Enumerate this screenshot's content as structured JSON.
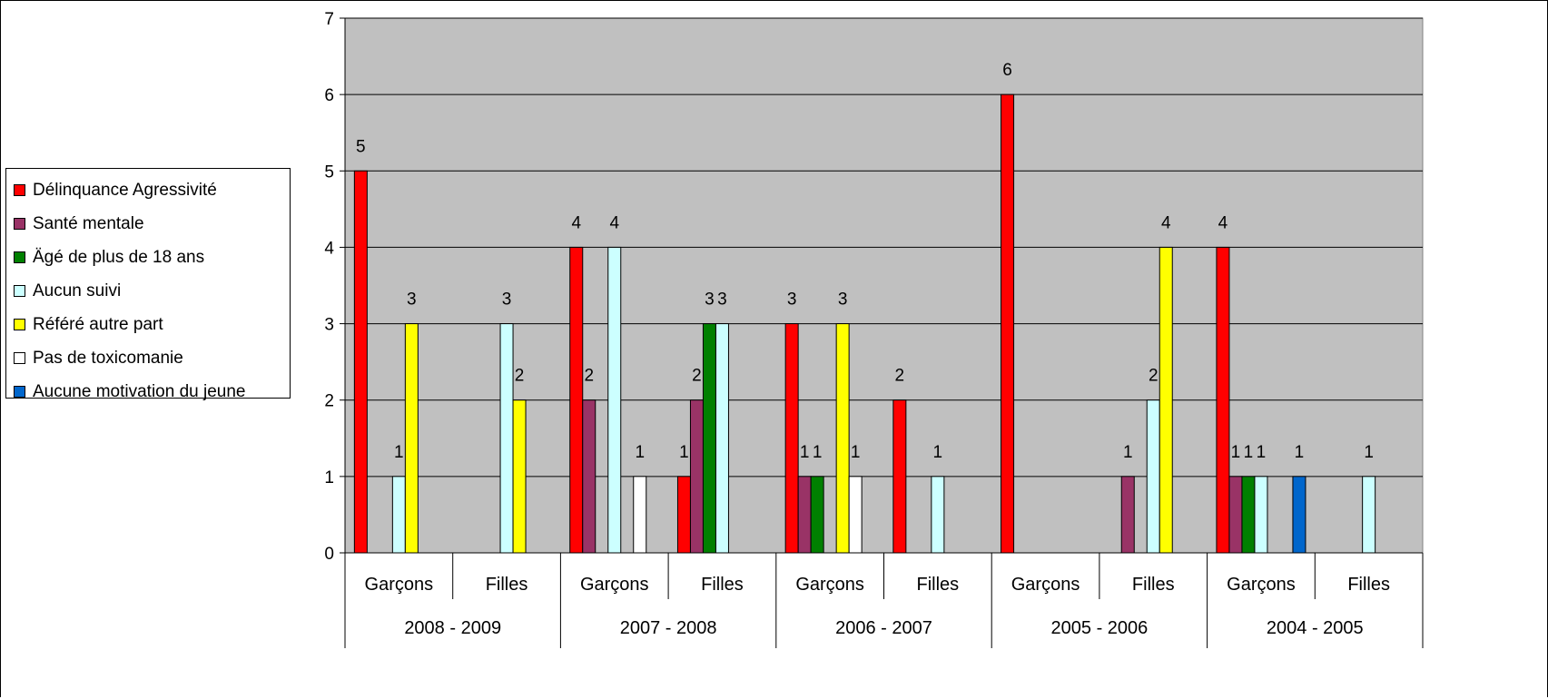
{
  "chart_data": {
    "type": "bar",
    "title": "",
    "xlabel": "",
    "ylabel": "",
    "ylim": [
      0,
      7
    ],
    "yticks": [
      0,
      1,
      2,
      3,
      4,
      5,
      6,
      7
    ],
    "grid": true,
    "legend_position": "left",
    "background_color": "#c0c0c0",
    "groups": [
      "2008 - 2009",
      "2007 - 2008",
      "2006 - 2007",
      "2005 - 2006",
      "2004 - 2005"
    ],
    "subcategories": [
      "Garçons",
      "Filles"
    ],
    "categories": [
      "2008 - 2009 Garçons",
      "2008 - 2009 Filles",
      "2007 - 2008 Garçons",
      "2007 - 2008 Filles",
      "2006 - 2007 Garçons",
      "2006 - 2007 Filles",
      "2005 - 2006 Garçons",
      "2005 - 2006 Filles",
      "2004 - 2005 Garçons",
      "2004 - 2005 Filles"
    ],
    "series": [
      {
        "name": "Délinquance Agressivité",
        "color": "#ff0000",
        "values": [
          5,
          null,
          4,
          1,
          3,
          2,
          6,
          null,
          4,
          null
        ]
      },
      {
        "name": "Santé mentale",
        "color": "#993366",
        "values": [
          null,
          null,
          2,
          2,
          1,
          null,
          null,
          1,
          1,
          null
        ]
      },
      {
        "name": "Ägé de plus de 18 ans",
        "color": "#008000",
        "values": [
          null,
          null,
          null,
          3,
          1,
          null,
          null,
          null,
          1,
          null
        ]
      },
      {
        "name": "Aucun suivi",
        "color": "#ccffff",
        "values": [
          1,
          3,
          4,
          3,
          null,
          1,
          null,
          2,
          1,
          1
        ]
      },
      {
        "name": "Référé autre part",
        "color": "#ffff00",
        "values": [
          3,
          2,
          null,
          null,
          3,
          null,
          null,
          4,
          null,
          null
        ]
      },
      {
        "name": "Pas de toxicomanie",
        "color": "#ffffff",
        "values": [
          null,
          null,
          1,
          null,
          1,
          null,
          null,
          null,
          null,
          null
        ]
      },
      {
        "name": "Aucune motivation du jeune",
        "color": "#0066cc",
        "values": [
          null,
          null,
          null,
          null,
          null,
          null,
          null,
          null,
          1,
          null
        ]
      }
    ]
  }
}
